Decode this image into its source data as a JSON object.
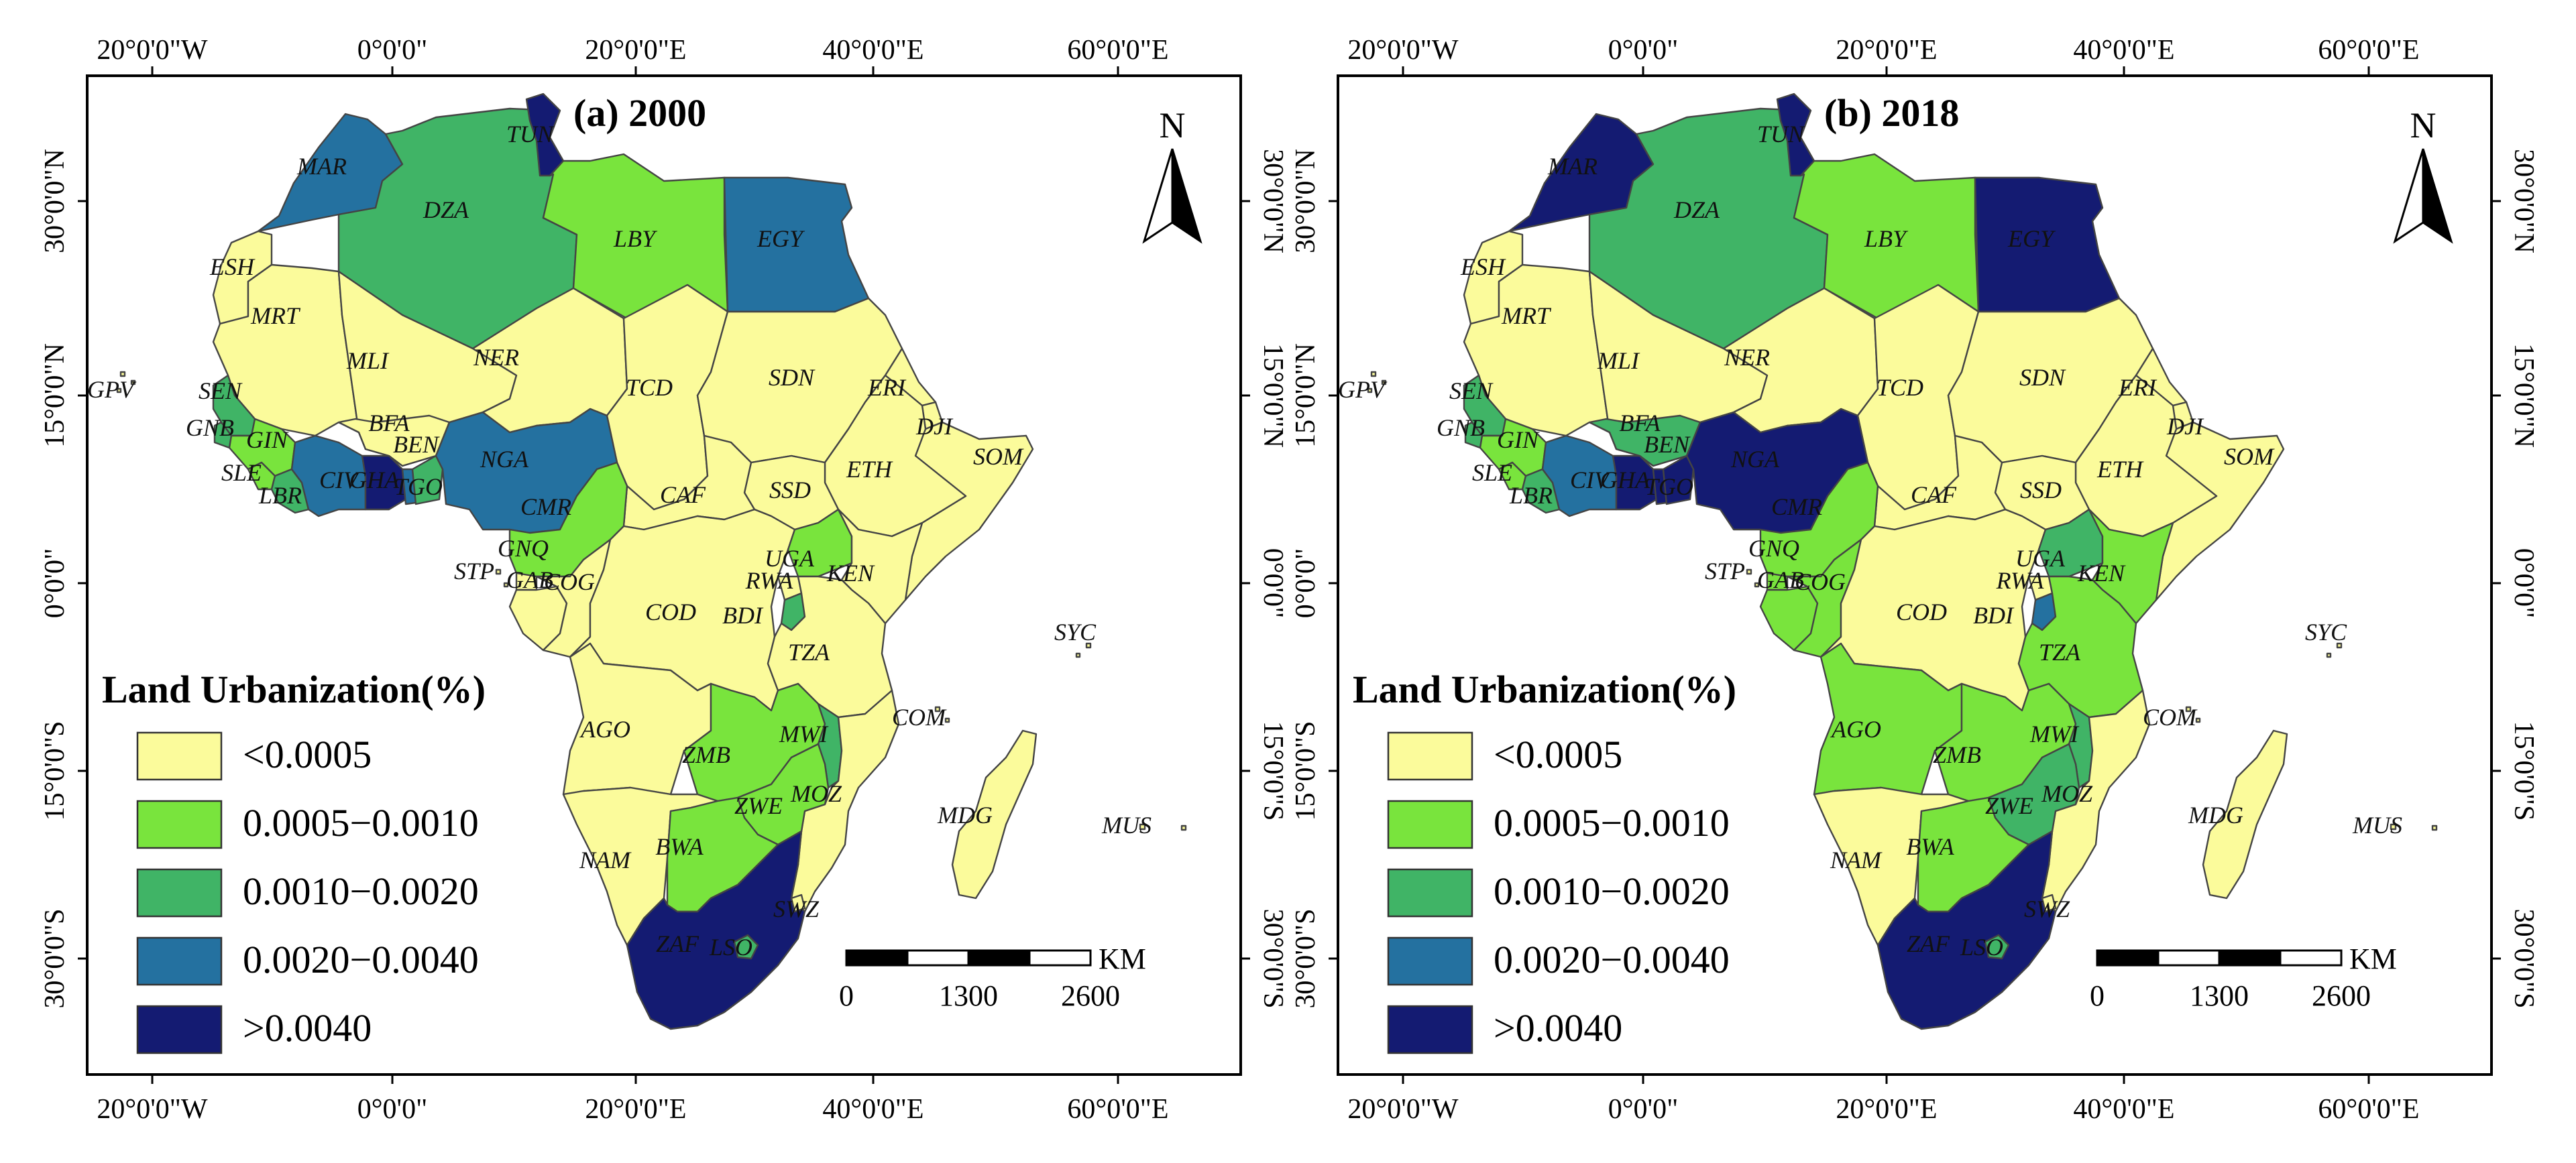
{
  "colors": {
    "c0": "#fbfb9b",
    "c1": "#79e43d",
    "c2": "#40b466",
    "c3": "#2471a0",
    "c4": "#141b72",
    "border": "#444444",
    "frame": "#000000"
  },
  "axes": {
    "top": [
      "20°0'0\"W",
      "0°0'0\"",
      "20°0'0\"E",
      "40°0'0\"E",
      "60°0'0\"E"
    ],
    "bottom": [
      "20°0'0\"W",
      "0°0'0\"",
      "20°0'0\"E",
      "40°0'0\"E",
      "60°0'0\"E"
    ],
    "left": [
      "30°0'0\"N",
      "15°0'0\"N",
      "0°0'0\"",
      "15°0'0\"S",
      "30°0'0\"S"
    ],
    "right": [
      "30°0'0\"N",
      "15°0'0\"N",
      "0°0'0\"",
      "15°0'0\"S",
      "30°0'0\"S"
    ]
  },
  "legend": {
    "title": "Land Urbanization(%)",
    "items": [
      "<0.0005",
      "0.0005−0.0010",
      "0.0010−0.0020",
      "0.0020−0.0040",
      ">0.0040"
    ]
  },
  "north_label": "N",
  "scalebar": {
    "unit": "KM",
    "labels": [
      "0",
      "1300",
      "2600"
    ]
  },
  "panels": [
    {
      "title": "(a) 2000",
      "classes": {
        "MAR": 3,
        "DZA": 2,
        "TUN": 4,
        "LBY": 1,
        "EGY": 3,
        "ESH": 0,
        "MRT": 0,
        "MLI": 0,
        "NER": 0,
        "TCD": 0,
        "SDN": 0,
        "ERI": 0,
        "DJI": 0,
        "SOM": 0,
        "ETH": 0,
        "SSD": 0,
        "CAF": 0,
        "SEN": 2,
        "GNB": 2,
        "GIN": 1,
        "SLE": 1,
        "LBR": 2,
        "CIV": 3,
        "GHA": 4,
        "TGO": 3,
        "BEN": 2,
        "BFA": 0,
        "NGA": 3,
        "CMR": 1,
        "GNQ": 0,
        "GAB": 0,
        "COG": 0,
        "COD": 0,
        "UGA": 1,
        "KEN": 0,
        "RWA": 0,
        "BDI": 2,
        "TZA": 0,
        "AGO": 0,
        "ZMB": 1,
        "MWI": 2,
        "MOZ": 0,
        "ZWE": 1,
        "NAM": 0,
        "BWA": 1,
        "ZAF": 4,
        "LSO": 2,
        "SWZ": 0,
        "MDG": 0,
        "GPV": 0,
        "STP": 0,
        "COM": 0,
        "SYC": 0,
        "MUS": 0
      }
    },
    {
      "title": "(b) 2018",
      "classes": {
        "MAR": 4,
        "DZA": 2,
        "TUN": 4,
        "LBY": 1,
        "EGY": 4,
        "ESH": 0,
        "MRT": 0,
        "MLI": 0,
        "NER": 0,
        "TCD": 0,
        "SDN": 0,
        "ERI": 0,
        "DJI": 0,
        "SOM": 0,
        "ETH": 0,
        "SSD": 0,
        "CAF": 0,
        "SEN": 2,
        "GNB": 2,
        "GIN": 1,
        "SLE": 1,
        "LBR": 2,
        "CIV": 3,
        "GHA": 4,
        "TGO": 4,
        "BEN": 4,
        "BFA": 2,
        "NGA": 4,
        "CMR": 1,
        "GNQ": 1,
        "GAB": 1,
        "COG": 1,
        "COD": 0,
        "UGA": 2,
        "KEN": 1,
        "RWA": 0,
        "BDI": 3,
        "TZA": 1,
        "AGO": 1,
        "ZMB": 1,
        "MWI": 2,
        "MOZ": 0,
        "ZWE": 2,
        "NAM": 0,
        "BWA": 1,
        "ZAF": 4,
        "LSO": 2,
        "SWZ": 0,
        "MDG": 0,
        "GPV": 0,
        "STP": 0,
        "COM": 0,
        "SYC": 0,
        "MUS": 0
      }
    }
  ]
}
